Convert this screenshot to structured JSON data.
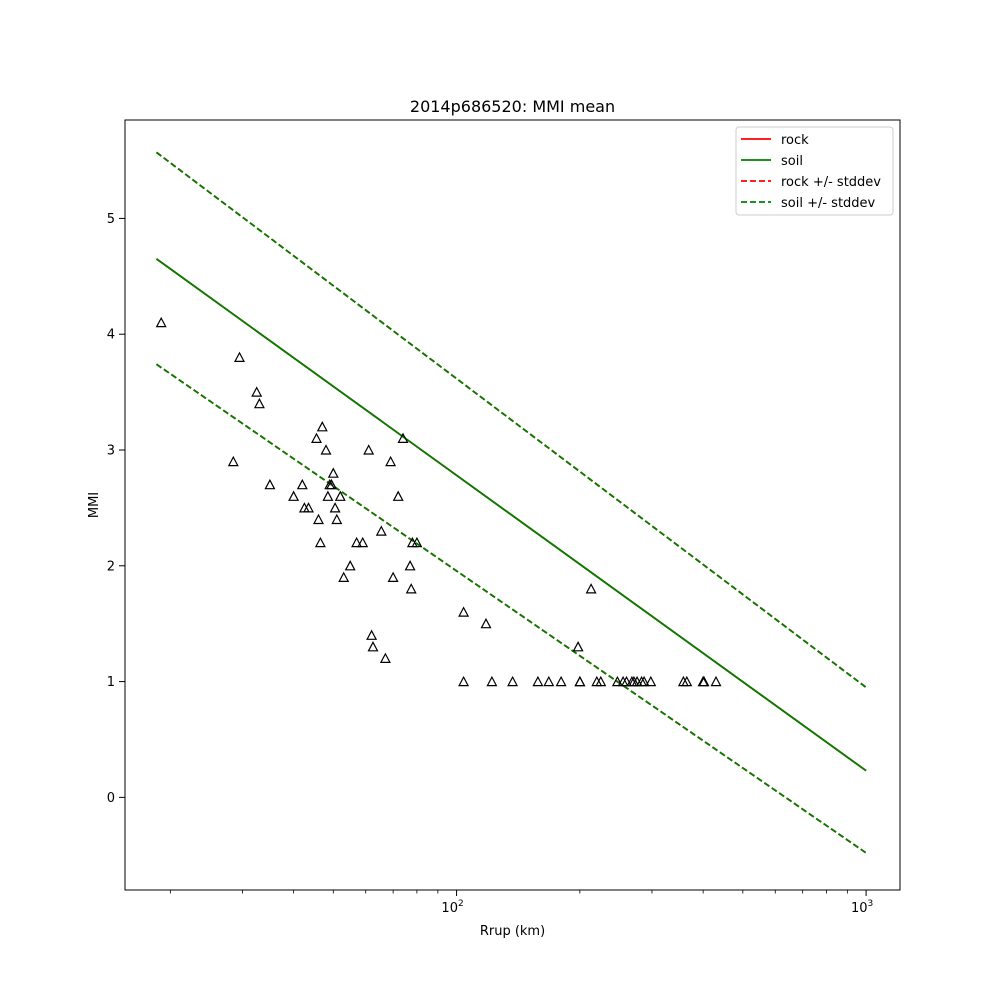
{
  "chart_data": {
    "type": "line",
    "title": "2014p686520: MMI mean",
    "xlabel": "Rrup (km)",
    "ylabel": "MMI",
    "xscale": "log",
    "xlim": [
      15.5,
      1210
    ],
    "ylim": [
      -0.8,
      5.85
    ],
    "x_ticks": [
      {
        "value": 100,
        "label": "10",
        "exp": "2"
      },
      {
        "value": 1000,
        "label": "10",
        "exp": "3"
      }
    ],
    "y_ticks": [
      0,
      1,
      2,
      3,
      4,
      5
    ],
    "grid": false,
    "legend_position": "top-right",
    "series": [
      {
        "name": "rock",
        "color": "#ff0000",
        "dash": "solid",
        "x": [
          18.5,
          1000
        ],
        "y": [
          4.65,
          0.23
        ]
      },
      {
        "name": "soil",
        "color": "#008000",
        "dash": "solid",
        "x": [
          18.5,
          1000
        ],
        "y": [
          4.65,
          0.23
        ]
      },
      {
        "name": "rock +/- stddev",
        "color": "#ff0000",
        "dash": "dashed",
        "upper": {
          "x": [
            18.5,
            1000
          ],
          "y": [
            5.57,
            0.95
          ]
        },
        "lower": {
          "x": [
            18.5,
            1000
          ],
          "y": [
            3.74,
            -0.48
          ]
        }
      },
      {
        "name": "soil +/- stddev",
        "color": "#008000",
        "dash": "dashed",
        "upper": {
          "x": [
            18.5,
            1000
          ],
          "y": [
            5.57,
            0.95
          ]
        },
        "lower": {
          "x": [
            18.5,
            1000
          ],
          "y": [
            3.74,
            -0.48
          ]
        }
      }
    ],
    "legend_entries": [
      {
        "label": "rock",
        "color": "#ff0000",
        "dash": "solid"
      },
      {
        "label": "soil",
        "color": "#008000",
        "dash": "solid"
      },
      {
        "label": "rock +/- stddev",
        "color": "#ff0000",
        "dash": "dashed"
      },
      {
        "label": "soil +/- stddev",
        "color": "#008000",
        "dash": "dashed"
      }
    ],
    "observations": {
      "marker": "triangle",
      "color": "#000000",
      "x": [
        19,
        28.5,
        29.5,
        32.5,
        33,
        35,
        40,
        42,
        42.5,
        43.5,
        45.5,
        46,
        46.5,
        47,
        48,
        48.5,
        49,
        49.5,
        50,
        50.5,
        51,
        52,
        53,
        55,
        57,
        59,
        61,
        62,
        62.5,
        65.5,
        67,
        69,
        70,
        72,
        74,
        77,
        77.5,
        78,
        80,
        104,
        104,
        118,
        122,
        137,
        158,
        168,
        180,
        198,
        200,
        200,
        213,
        220,
        225,
        247,
        255,
        260,
        268,
        271,
        276,
        283,
        287,
        298,
        358,
        365,
        400,
        402,
        430
      ],
      "y": [
        4.1,
        2.9,
        3.8,
        3.5,
        3.4,
        2.7,
        2.6,
        2.7,
        2.5,
        2.5,
        3.1,
        2.4,
        2.2,
        3.2,
        3.0,
        2.6,
        2.7,
        2.7,
        2.8,
        2.5,
        2.4,
        2.6,
        1.9,
        2.0,
        2.2,
        2.2,
        3.0,
        1.4,
        1.3,
        2.3,
        1.2,
        2.9,
        1.9,
        2.6,
        3.1,
        2.0,
        1.8,
        2.2,
        2.2,
        1.6,
        1.0,
        1.5,
        1.0,
        1.0,
        1.0,
        1.0,
        1.0,
        1.3,
        1.0,
        1.0,
        1.8,
        1.0,
        1.0,
        1.0,
        1.0,
        1.0,
        1.0,
        1.0,
        1.0,
        1.0,
        1.0,
        1.0,
        1.0,
        1.0,
        1.0,
        1.0,
        1.0
      ]
    }
  }
}
